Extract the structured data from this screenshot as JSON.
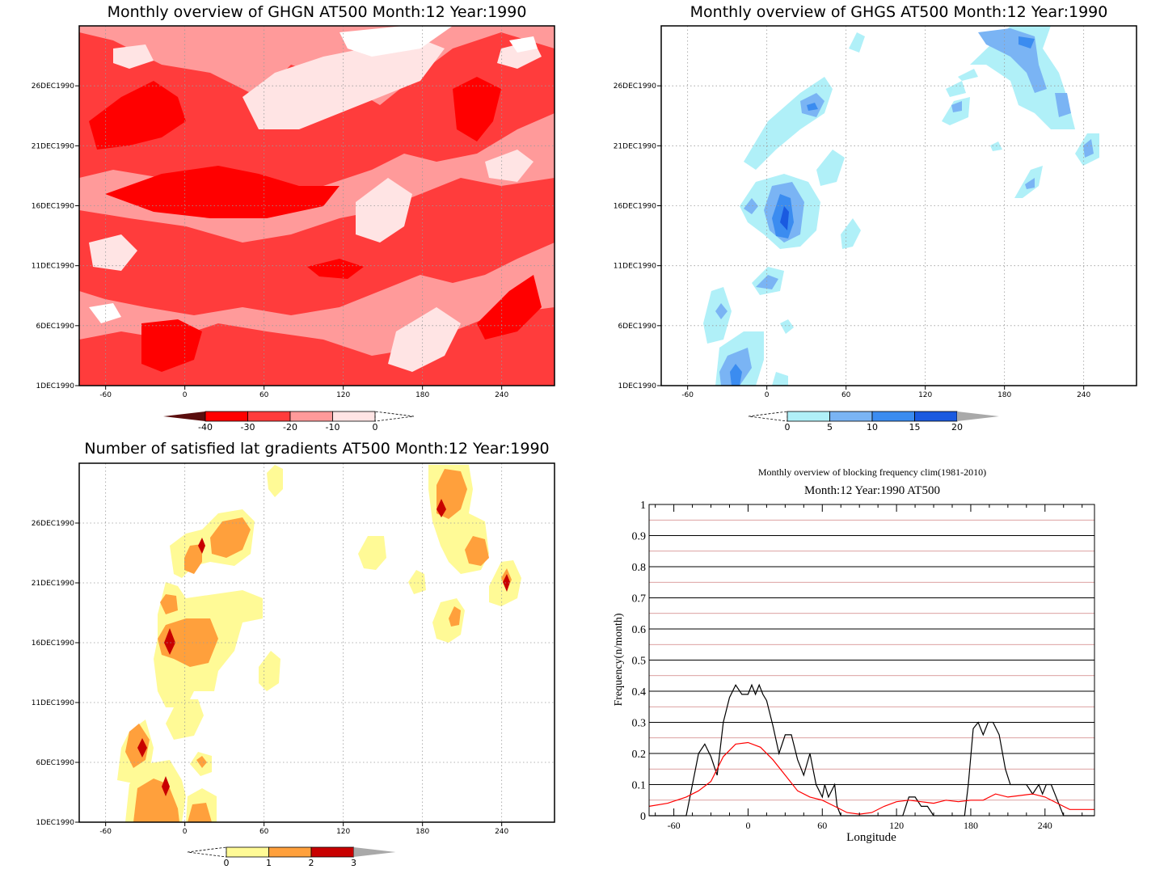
{
  "panels": {
    "ghgn": {
      "title": "Monthly overview of GHGN AT500 Month:12 Year:1990",
      "x_ticks": [
        "-60",
        "0",
        "60",
        "120",
        "180",
        "240"
      ],
      "y_ticks": [
        "1DEC1990",
        "6DEC1990",
        "11DEC1990",
        "16DEC1990",
        "21DEC1990",
        "26DEC1990"
      ],
      "colorbar": {
        "labels": [
          "-40",
          "-30",
          "-20",
          "-10",
          "0"
        ],
        "colors": [
          "#5a0e0e",
          "#ff0000",
          "#ff3c3c",
          "#ff9a9a",
          "#ffe4e4"
        ]
      }
    },
    "ghgs": {
      "title": "Monthly overview of GHGS AT500 Month:12 Year:1990",
      "x_ticks": [
        "-60",
        "0",
        "60",
        "120",
        "180",
        "240"
      ],
      "y_ticks": [
        "1DEC1990",
        "6DEC1990",
        "11DEC1990",
        "16DEC1990",
        "21DEC1990",
        "26DEC1990"
      ],
      "colorbar": {
        "labels": [
          "0",
          "5",
          "10",
          "15",
          "20"
        ],
        "colors": [
          "#b0f0f8",
          "#7ab4f4",
          "#3b8cf0",
          "#1a5ae0",
          "#a9a9a9"
        ]
      }
    },
    "gradients": {
      "title": "Number of satisfied lat gradients AT500 Month:12 Year:1990",
      "x_ticks": [
        "-60",
        "0",
        "60",
        "120",
        "180",
        "240"
      ],
      "y_ticks": [
        "1DEC1990",
        "6DEC1990",
        "11DEC1990",
        "16DEC1990",
        "21DEC1990",
        "26DEC1990"
      ],
      "colorbar": {
        "labels": [
          "0",
          "1",
          "2",
          "3"
        ],
        "colors": [
          "#fffa96",
          "#ffa03c",
          "#c80000",
          "#a9a9a9"
        ]
      }
    },
    "frequency": {
      "title": "Monthly overview of blocking frequency clim(1981-2010)",
      "subtitle": "Month:12 Year:1990  AT500",
      "xlabel": "Longitude",
      "ylabel": "Frequency(n/month)",
      "x_ticks": [
        "-60",
        "0",
        "60",
        "120",
        "180",
        "240"
      ],
      "y_ticks": [
        "0",
        "0.1",
        "0.2",
        "0.3",
        "0.4",
        "0.5",
        "0.6",
        "0.7",
        "0.8",
        "0.9",
        "1"
      ]
    }
  },
  "chart_data": [
    {
      "type": "heatmap",
      "title": "Monthly overview of GHGN AT500 Month:12 Year:1990",
      "xlim": [
        -80,
        280
      ],
      "x_ticks": [
        -60,
        0,
        60,
        120,
        180,
        240
      ],
      "y_ticks": [
        "1DEC1990",
        "6DEC1990",
        "11DEC1990",
        "16DEC1990",
        "21DEC1990",
        "26DEC1990"
      ],
      "levels": [
        -40,
        -30,
        -20,
        -10,
        0
      ]
    },
    {
      "type": "heatmap",
      "title": "Monthly overview of GHGS AT500 Month:12 Year:1990",
      "xlim": [
        -80,
        280
      ],
      "x_ticks": [
        -60,
        0,
        60,
        120,
        180,
        240
      ],
      "y_ticks": [
        "1DEC1990",
        "6DEC1990",
        "11DEC1990",
        "16DEC1990",
        "21DEC1990",
        "26DEC1990"
      ],
      "levels": [
        0,
        5,
        10,
        15,
        20
      ]
    },
    {
      "type": "heatmap",
      "title": "Number of satisfied lat gradients AT500 Month:12 Year:1990",
      "xlim": [
        -80,
        280
      ],
      "x_ticks": [
        -60,
        0,
        60,
        120,
        180,
        240
      ],
      "y_ticks": [
        "1DEC1990",
        "6DEC1990",
        "11DEC1990",
        "16DEC1990",
        "21DEC1990",
        "26DEC1990"
      ],
      "levels": [
        0,
        1,
        2,
        3
      ]
    },
    {
      "type": "line",
      "title": "Monthly overview of blocking frequency clim(1981-2010)",
      "subtitle": "Month:12 Year:1990  AT500",
      "xlabel": "Longitude",
      "ylabel": "Frequency(n/month)",
      "xlim": [
        -80,
        280
      ],
      "ylim": [
        0,
        1
      ],
      "grid": true,
      "series": [
        {
          "color": "#000000",
          "points": [
            [
              -80,
              0
            ],
            [
              -50,
              0
            ],
            [
              -45,
              0.1
            ],
            [
              -40,
              0.2
            ],
            [
              -35,
              0.23
            ],
            [
              -30,
              0.19
            ],
            [
              -25,
              0.13
            ],
            [
              -20,
              0.3
            ],
            [
              -15,
              0.38
            ],
            [
              -10,
              0.42
            ],
            [
              -5,
              0.39
            ],
            [
              0,
              0.39
            ],
            [
              3,
              0.42
            ],
            [
              6,
              0.39
            ],
            [
              9,
              0.42
            ],
            [
              12,
              0.39
            ],
            [
              15,
              0.37
            ],
            [
              20,
              0.29
            ],
            [
              25,
              0.2
            ],
            [
              30,
              0.26
            ],
            [
              35,
              0.26
            ],
            [
              40,
              0.18
            ],
            [
              45,
              0.13
            ],
            [
              50,
              0.2
            ],
            [
              55,
              0.1
            ],
            [
              60,
              0.06
            ],
            [
              62,
              0.1
            ],
            [
              65,
              0.06
            ],
            [
              70,
              0.1
            ],
            [
              72,
              0.03
            ],
            [
              75,
              0
            ],
            [
              125,
              0
            ],
            [
              130,
              0.06
            ],
            [
              135,
              0.06
            ],
            [
              140,
              0.03
            ],
            [
              145,
              0.03
            ],
            [
              150,
              0
            ],
            [
              175,
              0
            ],
            [
              178,
              0.1
            ],
            [
              182,
              0.28
            ],
            [
              186,
              0.3
            ],
            [
              190,
              0.26
            ],
            [
              194,
              0.3
            ],
            [
              198,
              0.3
            ],
            [
              203,
              0.26
            ],
            [
              208,
              0.15
            ],
            [
              212,
              0.1
            ],
            [
              220,
              0.1
            ],
            [
              225,
              0.1
            ],
            [
              230,
              0.07
            ],
            [
              235,
              0.1
            ],
            [
              238,
              0.07
            ],
            [
              241,
              0.1
            ],
            [
              245,
              0.1
            ],
            [
              250,
              0.05
            ],
            [
              255,
              0
            ],
            [
              280,
              0
            ]
          ]
        },
        {
          "color": "#ff0000",
          "points": [
            [
              -80,
              0.03
            ],
            [
              -65,
              0.04
            ],
            [
              -50,
              0.06
            ],
            [
              -40,
              0.08
            ],
            [
              -30,
              0.11
            ],
            [
              -20,
              0.19
            ],
            [
              -10,
              0.23
            ],
            [
              0,
              0.235
            ],
            [
              10,
              0.22
            ],
            [
              20,
              0.18
            ],
            [
              30,
              0.13
            ],
            [
              40,
              0.08
            ],
            [
              50,
              0.06
            ],
            [
              60,
              0.05
            ],
            [
              70,
              0.03
            ],
            [
              80,
              0.01
            ],
            [
              90,
              0.005
            ],
            [
              100,
              0.01
            ],
            [
              110,
              0.03
            ],
            [
              120,
              0.045
            ],
            [
              130,
              0.05
            ],
            [
              140,
              0.045
            ],
            [
              150,
              0.04
            ],
            [
              160,
              0.05
            ],
            [
              170,
              0.045
            ],
            [
              180,
              0.05
            ],
            [
              190,
              0.05
            ],
            [
              200,
              0.07
            ],
            [
              210,
              0.06
            ],
            [
              220,
              0.065
            ],
            [
              230,
              0.07
            ],
            [
              240,
              0.06
            ],
            [
              250,
              0.04
            ],
            [
              260,
              0.02
            ],
            [
              280,
              0.02
            ]
          ]
        }
      ]
    }
  ]
}
